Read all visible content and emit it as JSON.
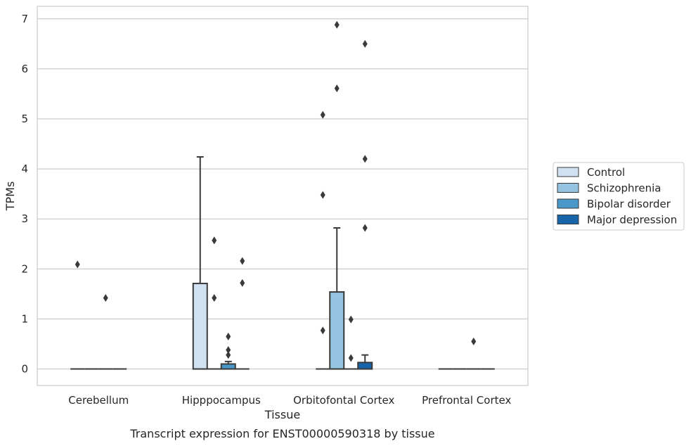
{
  "chart_data": {
    "type": "box",
    "title": "",
    "caption": "Transcript expression for ENST00000590318 by tissue",
    "xlabel": "Tissue",
    "ylabel": "TPMs",
    "ylim": [
      -0.33,
      7.25
    ],
    "yticks": [
      0,
      1,
      2,
      3,
      4,
      5,
      6,
      7
    ],
    "grid": true,
    "legend_position": "right",
    "categories": [
      "Cerebellum",
      "Hipppocampus",
      "Orbitofontal Cortex",
      "Prefrontal Cortex"
    ],
    "series": [
      {
        "name": "Control",
        "color": "#d0e1f2",
        "boxes": [
          {
            "category": "Cerebellum",
            "q1": 0,
            "median": 0,
            "q3": 0,
            "whisker_low": 0,
            "whisker_high": 0,
            "outliers": [
              2.09
            ]
          },
          {
            "category": "Hipppocampus",
            "q1": 0,
            "median": 0,
            "q3": 1.71,
            "whisker_low": 0,
            "whisker_high": 4.24,
            "outliers": []
          },
          {
            "category": "Orbitofontal Cortex",
            "q1": 0,
            "median": 0,
            "q3": 0,
            "whisker_low": 0,
            "whisker_high": 0,
            "outliers": [
              0.77,
              3.48,
              5.08
            ]
          },
          {
            "category": "Prefrontal Cortex",
            "q1": 0,
            "median": 0,
            "q3": 0,
            "whisker_low": 0,
            "whisker_high": 0,
            "outliers": []
          }
        ]
      },
      {
        "name": "Schizophrenia",
        "color": "#94c4df",
        "boxes": [
          {
            "category": "Cerebellum",
            "q1": 0,
            "median": 0,
            "q3": 0,
            "whisker_low": 0,
            "whisker_high": 0,
            "outliers": []
          },
          {
            "category": "Hipppocampus",
            "q1": 0,
            "median": 0,
            "q3": 0,
            "whisker_low": 0,
            "whisker_high": 0,
            "outliers": [
              1.42,
              2.57
            ]
          },
          {
            "category": "Orbitofontal Cortex",
            "q1": 0,
            "median": 0,
            "q3": 1.54,
            "whisker_low": 0,
            "whisker_high": 2.82,
            "outliers": [
              5.61,
              6.88
            ]
          },
          {
            "category": "Prefrontal Cortex",
            "q1": 0,
            "median": 0,
            "q3": 0,
            "whisker_low": 0,
            "whisker_high": 0,
            "outliers": []
          }
        ]
      },
      {
        "name": "Bipolar disorder",
        "color": "#4a98c9",
        "boxes": [
          {
            "category": "Cerebellum",
            "q1": 0,
            "median": 0,
            "q3": 0,
            "whisker_low": 0,
            "whisker_high": 0,
            "outliers": [
              1.42
            ]
          },
          {
            "category": "Hipppocampus",
            "q1": 0,
            "median": 0,
            "q3": 0.1,
            "whisker_low": 0,
            "whisker_high": 0.15,
            "outliers": [
              0.28,
              0.38,
              0.65
            ]
          },
          {
            "category": "Orbitofontal Cortex",
            "q1": 0,
            "median": 0,
            "q3": 0,
            "whisker_low": 0,
            "whisker_high": 0,
            "outliers": [
              0.22,
              0.99
            ]
          },
          {
            "category": "Prefrontal Cortex",
            "q1": 0,
            "median": 0,
            "q3": 0,
            "whisker_low": 0,
            "whisker_high": 0,
            "outliers": [
              0.55
            ]
          }
        ]
      },
      {
        "name": "Major depression",
        "color": "#1764ab",
        "boxes": [
          {
            "category": "Cerebellum",
            "q1": 0,
            "median": 0,
            "q3": 0,
            "whisker_low": 0,
            "whisker_high": 0,
            "outliers": []
          },
          {
            "category": "Hipppocampus",
            "q1": 0,
            "median": 0,
            "q3": 0,
            "whisker_low": 0,
            "whisker_high": 0,
            "outliers": [
              1.72,
              2.16
            ]
          },
          {
            "category": "Orbitofontal Cortex",
            "q1": 0,
            "median": 0,
            "q3": 0.13,
            "whisker_low": 0,
            "whisker_high": 0.28,
            "outliers": [
              2.82,
              4.2,
              6.5
            ]
          },
          {
            "category": "Prefrontal Cortex",
            "q1": 0,
            "median": 0,
            "q3": 0,
            "whisker_low": 0,
            "whisker_high": 0,
            "outliers": []
          }
        ]
      }
    ]
  }
}
